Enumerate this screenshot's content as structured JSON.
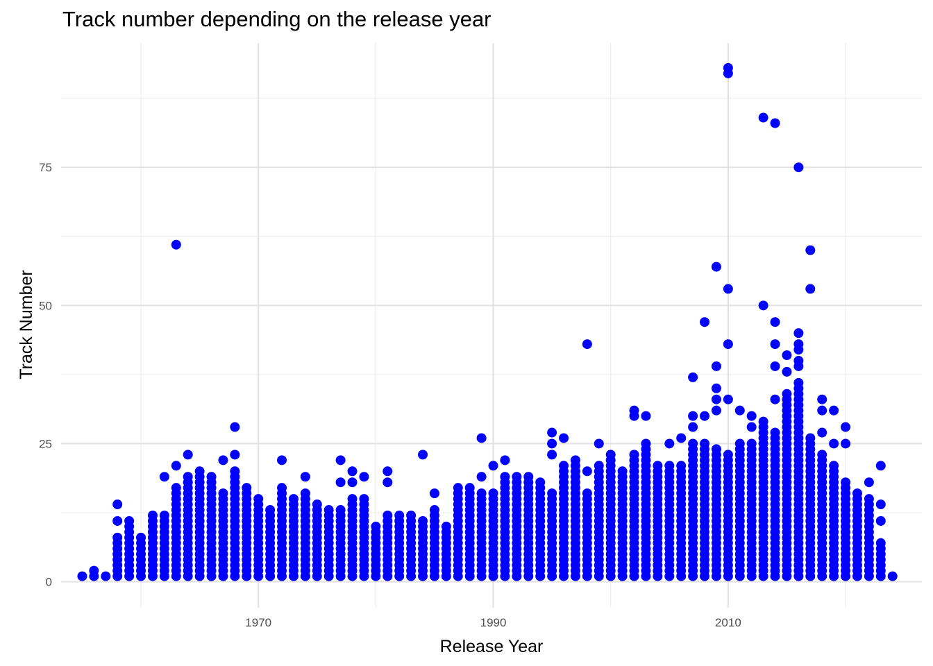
{
  "chart_data": {
    "type": "scatter",
    "title": "Track number depending on the release year",
    "xlabel": "Release Year",
    "ylabel": "Track Number",
    "xlim": [
      1953.2,
      2026.5
    ],
    "ylim": [
      -4.7,
      97.5
    ],
    "x_ticks": [
      1970,
      1990,
      2010
    ],
    "x_minor_ticks": [
      1960,
      1980,
      2000,
      2020
    ],
    "y_ticks": [
      0,
      25,
      50,
      75
    ],
    "y_minor_ticks": [
      12.5,
      37.5,
      62.5,
      87.5
    ],
    "grid": true,
    "point_color": "#0000ff",
    "series": [
      {
        "columns": [
          {
            "year": 1955,
            "max_track": 1,
            "outliers": []
          },
          {
            "year": 1956,
            "max_track": 2,
            "outliers": []
          },
          {
            "year": 1957,
            "max_track": 1,
            "outliers": []
          },
          {
            "year": 1958,
            "max_track": 8,
            "outliers": [
              11,
              14
            ]
          },
          {
            "year": 1959,
            "max_track": 11,
            "outliers": []
          },
          {
            "year": 1960,
            "max_track": 8,
            "outliers": []
          },
          {
            "year": 1961,
            "max_track": 12,
            "outliers": []
          },
          {
            "year": 1962,
            "max_track": 12,
            "outliers": [
              19
            ]
          },
          {
            "year": 1963,
            "max_track": 17,
            "outliers": [
              21,
              61
            ]
          },
          {
            "year": 1964,
            "max_track": 19,
            "outliers": [
              23
            ]
          },
          {
            "year": 1965,
            "max_track": 20,
            "outliers": []
          },
          {
            "year": 1966,
            "max_track": 19,
            "outliers": []
          },
          {
            "year": 1967,
            "max_track": 16,
            "outliers": [
              22
            ]
          },
          {
            "year": 1968,
            "max_track": 20,
            "outliers": [
              23,
              28
            ]
          },
          {
            "year": 1969,
            "max_track": 17,
            "outliers": []
          },
          {
            "year": 1970,
            "max_track": 15,
            "outliers": []
          },
          {
            "year": 1971,
            "max_track": 13,
            "outliers": []
          },
          {
            "year": 1972,
            "max_track": 17,
            "outliers": [
              22
            ]
          },
          {
            "year": 1973,
            "max_track": 15,
            "outliers": []
          },
          {
            "year": 1974,
            "max_track": 16,
            "outliers": [
              19
            ]
          },
          {
            "year": 1975,
            "max_track": 14,
            "outliers": []
          },
          {
            "year": 1976,
            "max_track": 13,
            "outliers": []
          },
          {
            "year": 1977,
            "max_track": 13,
            "outliers": [
              18,
              22
            ]
          },
          {
            "year": 1978,
            "max_track": 15,
            "outliers": [
              18,
              20
            ]
          },
          {
            "year": 1979,
            "max_track": 15,
            "outliers": [
              19
            ]
          },
          {
            "year": 1980,
            "max_track": 10,
            "outliers": []
          },
          {
            "year": 1981,
            "max_track": 12,
            "outliers": [
              18,
              20
            ]
          },
          {
            "year": 1982,
            "max_track": 12,
            "outliers": []
          },
          {
            "year": 1983,
            "max_track": 12,
            "outliers": []
          },
          {
            "year": 1984,
            "max_track": 11,
            "outliers": [
              23
            ]
          },
          {
            "year": 1985,
            "max_track": 13,
            "outliers": [
              16
            ]
          },
          {
            "year": 1986,
            "max_track": 10,
            "outliers": []
          },
          {
            "year": 1987,
            "max_track": 17,
            "outliers": []
          },
          {
            "year": 1988,
            "max_track": 17,
            "outliers": []
          },
          {
            "year": 1989,
            "max_track": 16,
            "outliers": [
              19,
              26
            ]
          },
          {
            "year": 1990,
            "max_track": 16,
            "outliers": [
              21
            ]
          },
          {
            "year": 1991,
            "max_track": 19,
            "outliers": [
              22
            ]
          },
          {
            "year": 1992,
            "max_track": 19,
            "outliers": []
          },
          {
            "year": 1993,
            "max_track": 19,
            "outliers": []
          },
          {
            "year": 1994,
            "max_track": 18,
            "outliers": []
          },
          {
            "year": 1995,
            "max_track": 16,
            "outliers": [
              23,
              25,
              27
            ]
          },
          {
            "year": 1996,
            "max_track": 21,
            "outliers": [
              26
            ]
          },
          {
            "year": 1997,
            "max_track": 22,
            "outliers": []
          },
          {
            "year": 1998,
            "max_track": 16,
            "outliers": [
              20,
              43
            ]
          },
          {
            "year": 1999,
            "max_track": 21,
            "outliers": [
              25
            ]
          },
          {
            "year": 2000,
            "max_track": 23,
            "outliers": []
          },
          {
            "year": 2001,
            "max_track": 20,
            "outliers": []
          },
          {
            "year": 2002,
            "max_track": 23,
            "outliers": [
              30,
              31
            ]
          },
          {
            "year": 2003,
            "max_track": 25,
            "outliers": [
              30
            ]
          },
          {
            "year": 2004,
            "max_track": 21,
            "outliers": []
          },
          {
            "year": 2005,
            "max_track": 21,
            "outliers": [
              25
            ]
          },
          {
            "year": 2006,
            "max_track": 21,
            "outliers": [
              26
            ]
          },
          {
            "year": 2007,
            "max_track": 25,
            "outliers": [
              28,
              30,
              37
            ]
          },
          {
            "year": 2008,
            "max_track": 25,
            "outliers": [
              30,
              47
            ]
          },
          {
            "year": 2009,
            "max_track": 24,
            "outliers": [
              31,
              33,
              35,
              39,
              57
            ]
          },
          {
            "year": 2010,
            "max_track": 23,
            "outliers": [
              33,
              43,
              53,
              92,
              93
            ]
          },
          {
            "year": 2011,
            "max_track": 25,
            "outliers": [
              31
            ]
          },
          {
            "year": 2012,
            "max_track": 25,
            "outliers": [
              28,
              30
            ]
          },
          {
            "year": 2013,
            "max_track": 29,
            "outliers": [
              50,
              84
            ]
          },
          {
            "year": 2014,
            "max_track": 27,
            "outliers": [
              33,
              39,
              43,
              47,
              83
            ]
          },
          {
            "year": 2015,
            "max_track": 34,
            "outliers": [
              38,
              41
            ]
          },
          {
            "year": 2016,
            "max_track": 36,
            "outliers": [
              39,
              40,
              42,
              43,
              45,
              75
            ]
          },
          {
            "year": 2017,
            "max_track": 26,
            "outliers": [
              53,
              60
            ]
          },
          {
            "year": 2018,
            "max_track": 23,
            "outliers": [
              27,
              31,
              33
            ]
          },
          {
            "year": 2019,
            "max_track": 21,
            "outliers": [
              25,
              31
            ]
          },
          {
            "year": 2020,
            "max_track": 18,
            "outliers": [
              25,
              28
            ]
          },
          {
            "year": 2021,
            "max_track": 16,
            "outliers": []
          },
          {
            "year": 2022,
            "max_track": 15,
            "outliers": [
              18
            ]
          },
          {
            "year": 2023,
            "max_track": 7,
            "outliers": [
              11,
              14,
              21
            ]
          },
          {
            "year": 2024,
            "max_track": 1,
            "outliers": []
          }
        ]
      }
    ]
  }
}
